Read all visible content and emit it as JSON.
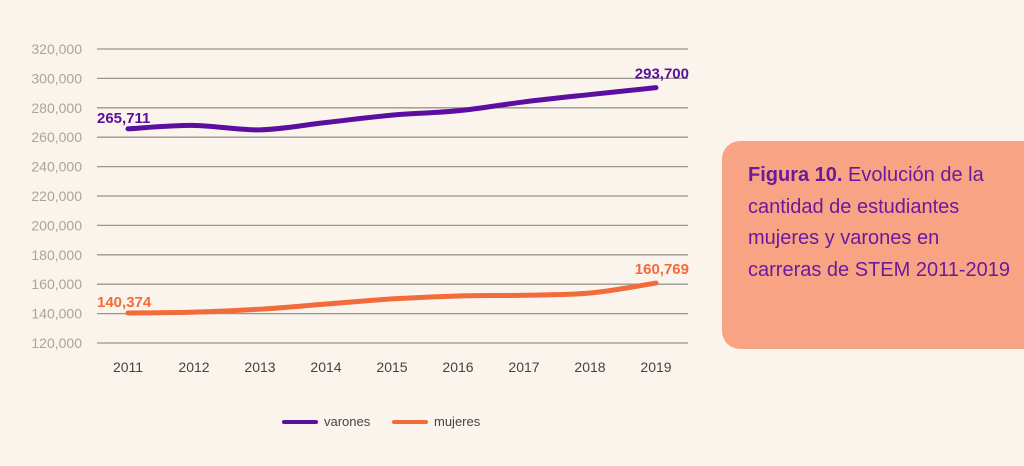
{
  "chart_data": {
    "type": "line",
    "title": "",
    "xlabel": "",
    "ylabel": "",
    "categories": [
      "2011",
      "2012",
      "2013",
      "2014",
      "2015",
      "2016",
      "2017",
      "2018",
      "2019"
    ],
    "y_ticks": [
      "120,000",
      "140,000",
      "160,000",
      "180,000",
      "200,000",
      "220,000",
      "240,000",
      "260,000",
      "280,000",
      "300,000",
      "320,000"
    ],
    "ylim": [
      120000,
      320000
    ],
    "grid": true,
    "legend_position": "bottom",
    "series": [
      {
        "name": "varones",
        "color": "#5a0fa0",
        "values": [
          265711,
          268000,
          265000,
          270000,
          275000,
          278000,
          284000,
          289000,
          293700
        ],
        "labels": {
          "first": "265,711",
          "last": "293,700"
        }
      },
      {
        "name": "mujeres",
        "color": "#f26b3a",
        "values": [
          140374,
          141000,
          143000,
          146500,
          150000,
          152000,
          152500,
          154000,
          160769
        ],
        "labels": {
          "first": "140,374",
          "last": "160,769"
        }
      }
    ]
  },
  "caption": {
    "figure_label": "Figura 10.",
    "text": " Evolución de la cantidad de estudiantes mujeres y varones en carreras de STEM  2011-2019"
  },
  "colors": {
    "background": "#faf4ec",
    "panel": "#f9a385",
    "caption_text": "#6a1b9a"
  }
}
